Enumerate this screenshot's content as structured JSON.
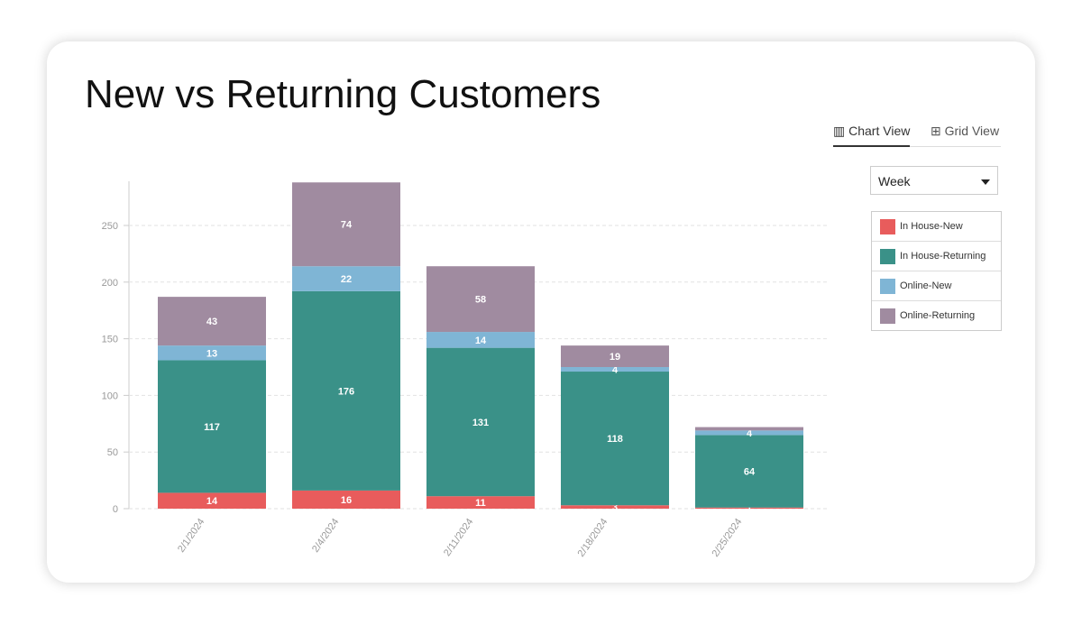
{
  "header": {
    "title": "New vs Returning Customers"
  },
  "tabs": [
    "Chart View",
    "Grid View"
  ],
  "period_select": "Week",
  "chart_data": {
    "type": "stacked-bar",
    "categories": [
      "2/1/2024",
      "2/4/2024",
      "2/11/2024",
      "2/18/2024",
      "2/25/2024"
    ],
    "series": [
      {
        "name": "In House-New",
        "color": "#e85c5c",
        "values": [
          14,
          16,
          11,
          3,
          1
        ]
      },
      {
        "name": "In House-Returning",
        "color": "#3a9188",
        "values": [
          117,
          176,
          131,
          118,
          64
        ]
      },
      {
        "name": "Online-New",
        "color": "#7fb5d5",
        "values": [
          13,
          22,
          14,
          4,
          4
        ]
      },
      {
        "name": "Online-Returning",
        "color": "#a08ba0",
        "values": [
          43,
          74,
          58,
          19,
          3
        ],
        "value_labels": [
          "43",
          "74",
          "58",
          "19",
          null
        ]
      }
    ],
    "ylim": [
      0,
      289
    ],
    "yticks": [
      0,
      50,
      100,
      150,
      200,
      250
    ],
    "grid": true,
    "legend": "right"
  }
}
